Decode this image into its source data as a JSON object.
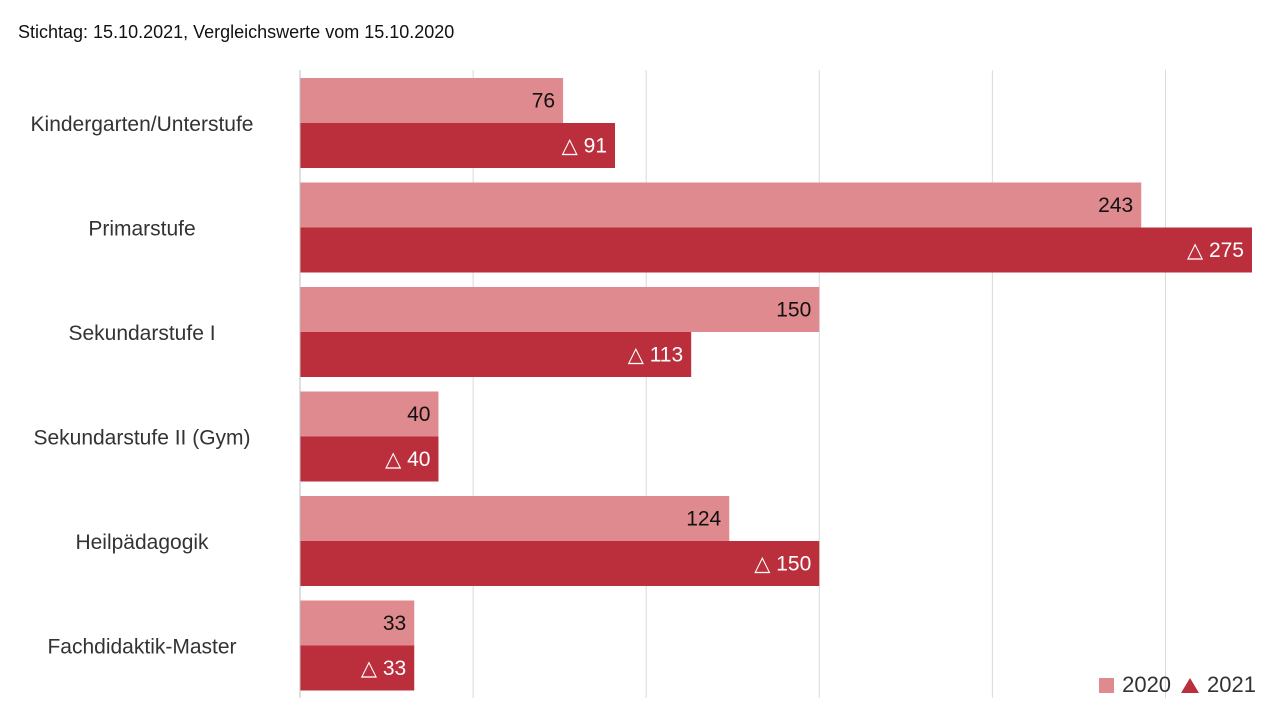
{
  "subtitle": "Stichtag: 15.10.2021, Vergleichswerte vom 15.10.2020",
  "colors": {
    "series_2020": "#df8a8e",
    "series_2021": "#bb2f3d",
    "grid": "#d9d9d9"
  },
  "chart_data": {
    "type": "bar",
    "orientation": "horizontal",
    "subtitle": "Stichtag: 15.10.2021, Vergleichswerte vom 15.10.2020",
    "categories": [
      "Kindergarten/Unterstufe",
      "Primarstufe",
      "Sekundarstufe I",
      "Sekundarstufe II (Gym)",
      "Heilpädagogik",
      "Fachdidaktik-Master"
    ],
    "series": [
      {
        "name": "2020",
        "values": [
          76,
          243,
          150,
          40,
          124,
          33
        ]
      },
      {
        "name": "2021",
        "values": [
          91,
          275,
          113,
          40,
          150,
          33
        ],
        "marker": "△"
      }
    ],
    "xlim": [
      0,
      275
    ],
    "grid": true,
    "legend": "bottom-right"
  }
}
